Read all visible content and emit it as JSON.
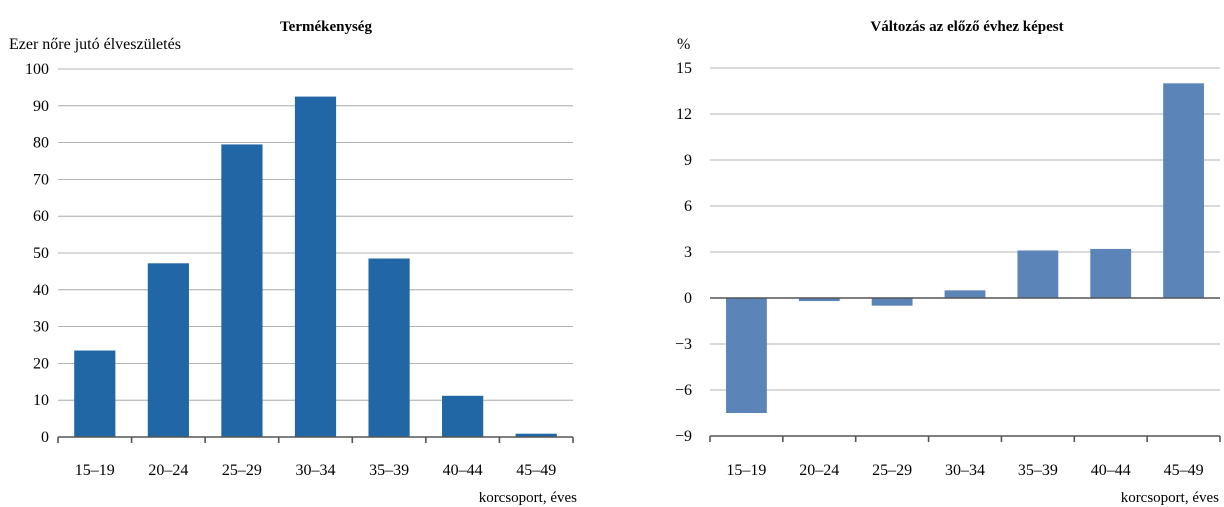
{
  "chart_data": [
    {
      "type": "bar",
      "title": "Termékenység",
      "ylabel": "Ezer nőre jutó élveszületés",
      "xlabel": "korcsoport, éves",
      "categories": [
        "15–19",
        "20–24",
        "25–29",
        "30–34",
        "35–39",
        "40–44",
        "45–49"
      ],
      "values": [
        23.5,
        47.2,
        79.5,
        92.5,
        48.5,
        11.2,
        0.9
      ],
      "ylim": [
        0,
        100
      ],
      "yticks": [
        0,
        10,
        20,
        30,
        40,
        50,
        60,
        70,
        80,
        90,
        100
      ],
      "grid": true,
      "legend": "none",
      "color": "#2166a5"
    },
    {
      "type": "bar",
      "title": "Változás az előző évhez képest",
      "ylabel": "%",
      "xlabel": "korcsoport, éves",
      "categories": [
        "15–19",
        "20–24",
        "25–29",
        "30–34",
        "35–39",
        "40–44",
        "45–49"
      ],
      "values": [
        -7.5,
        -0.2,
        -0.5,
        0.5,
        3.1,
        3.2,
        14.0
      ],
      "ylim": [
        -9,
        15
      ],
      "yticks": [
        -9,
        -6,
        -3,
        0,
        3,
        6,
        9,
        12,
        15
      ],
      "grid": true,
      "legend": "none",
      "color": "#5b84b8"
    }
  ]
}
